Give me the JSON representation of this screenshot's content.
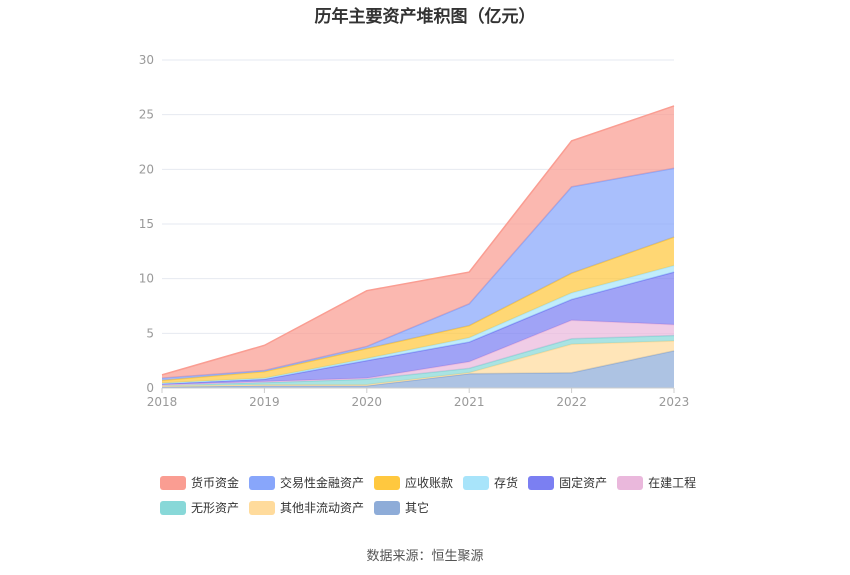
{
  "chart_data": {
    "type": "area",
    "stacked": true,
    "title": "历年主要资产堆积图（亿元）",
    "x": [
      "2018",
      "2019",
      "2020",
      "2021",
      "2022",
      "2023"
    ],
    "ylim": [
      0,
      30
    ],
    "yticks": [
      "0",
      "5",
      "10",
      "15",
      "20",
      "25",
      "30"
    ],
    "grid": true,
    "legend_position": "bottom",
    "series": [
      {
        "name": "其它",
        "color": "#8eacd8",
        "values": [
          0.1,
          0.2,
          0.2,
          1.3,
          1.4,
          3.4
        ]
      },
      {
        "name": "其他非流动资产",
        "color": "#ffdb9c",
        "values": [
          0.1,
          0.1,
          0.1,
          0.1,
          2.6,
          0.9
        ]
      },
      {
        "name": "无形资产",
        "color": "#88d8d8",
        "values": [
          0.1,
          0.2,
          0.5,
          0.4,
          0.5,
          0.5
        ]
      },
      {
        "name": "在建工程",
        "color": "#eab8dc",
        "values": [
          0.0,
          0.1,
          0.1,
          0.6,
          1.7,
          1.0
        ]
      },
      {
        "name": "固定资产",
        "color": "#7b7ff2",
        "values": [
          0.1,
          0.2,
          1.6,
          1.8,
          1.9,
          4.8
        ]
      },
      {
        "name": "存货",
        "color": "#a8e4fa",
        "values": [
          0.05,
          0.1,
          0.2,
          0.4,
          0.6,
          0.6
        ]
      },
      {
        "name": "应收账款",
        "color": "#ffc83f",
        "values": [
          0.25,
          0.6,
          0.9,
          1.1,
          1.8,
          2.6
        ]
      },
      {
        "name": "交易性金融资产",
        "color": "#88a6fb",
        "values": [
          0.2,
          0.1,
          0.2,
          2.0,
          7.9,
          6.3
        ]
      },
      {
        "name": "货币资金",
        "color": "#fa9d92",
        "values": [
          0.3,
          2.3,
          5.1,
          2.9,
          4.2,
          5.7
        ]
      }
    ]
  },
  "legend": {
    "rows": [
      [
        {
          "label": "货币资金",
          "color": "#fa9d92"
        },
        {
          "label": "交易性金融资产",
          "color": "#88a6fb"
        },
        {
          "label": "应收账款",
          "color": "#ffc83f"
        },
        {
          "label": "存货",
          "color": "#a8e4fa"
        },
        {
          "label": "固定资产",
          "color": "#7b7ff2"
        },
        {
          "label": "在建工程",
          "color": "#eab8dc"
        }
      ],
      [
        {
          "label": "无形资产",
          "color": "#88d8d8"
        },
        {
          "label": "其他非流动资产",
          "color": "#ffdb9c"
        },
        {
          "label": "其它",
          "color": "#8eacd8"
        }
      ]
    ]
  },
  "source": "数据来源：恒生聚源"
}
